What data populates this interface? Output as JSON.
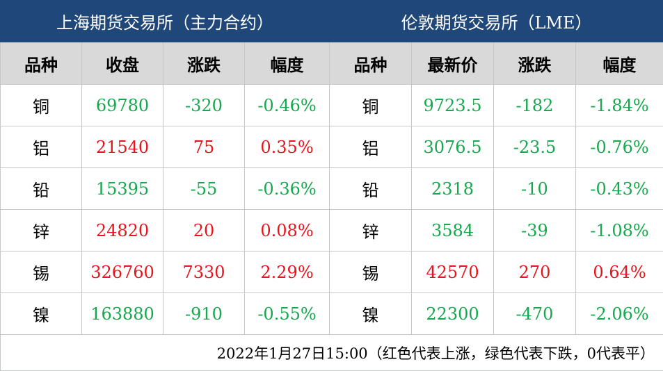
{
  "exchanges": {
    "shanghai": "上海期货交易所（主力合约）",
    "london": "伦敦期货交易所（LME）"
  },
  "headers": {
    "shanghai": [
      "品种",
      "收盘",
      "涨跌",
      "幅度"
    ],
    "london": [
      "品种",
      "最新价",
      "涨跌",
      "幅度"
    ]
  },
  "colors": {
    "up": "#e8141b",
    "down": "#15a84c",
    "header_bg": "#20477a"
  },
  "rows": [
    {
      "metal": "铜",
      "sh_close": "69780",
      "sh_change": "-320",
      "sh_pct": "-0.46%",
      "sh_dir": "down",
      "lme_price": "9723.5",
      "lme_change": "-182",
      "lme_pct": "-1.84%",
      "lme_dir": "down"
    },
    {
      "metal": "铝",
      "sh_close": "21540",
      "sh_change": "75",
      "sh_pct": "0.35%",
      "sh_dir": "up",
      "lme_price": "3076.5",
      "lme_change": "-23.5",
      "lme_pct": "-0.76%",
      "lme_dir": "down"
    },
    {
      "metal": "铅",
      "sh_close": "15395",
      "sh_change": "-55",
      "sh_pct": "-0.36%",
      "sh_dir": "down",
      "lme_price": "2318",
      "lme_change": "-10",
      "lme_pct": "-0.43%",
      "lme_dir": "down"
    },
    {
      "metal": "锌",
      "sh_close": "24820",
      "sh_change": "20",
      "sh_pct": "0.08%",
      "sh_dir": "up",
      "lme_price": "3584",
      "lme_change": "-39",
      "lme_pct": "-1.08%",
      "lme_dir": "down"
    },
    {
      "metal": "锡",
      "sh_close": "326760",
      "sh_change": "7330",
      "sh_pct": "2.29%",
      "sh_dir": "up",
      "lme_price": "42570",
      "lme_change": "270",
      "lme_pct": "0.64%",
      "lme_dir": "up"
    },
    {
      "metal": "镍",
      "sh_close": "163880",
      "sh_change": "-910",
      "sh_pct": "-0.55%",
      "sh_dir": "down",
      "lme_price": "22300",
      "lme_change": "-470",
      "lme_pct": "-2.06%",
      "lme_dir": "down"
    }
  ],
  "footer": "2022年1月27日15:00（红色代表上涨，绿色代表下跌，0代表平）"
}
